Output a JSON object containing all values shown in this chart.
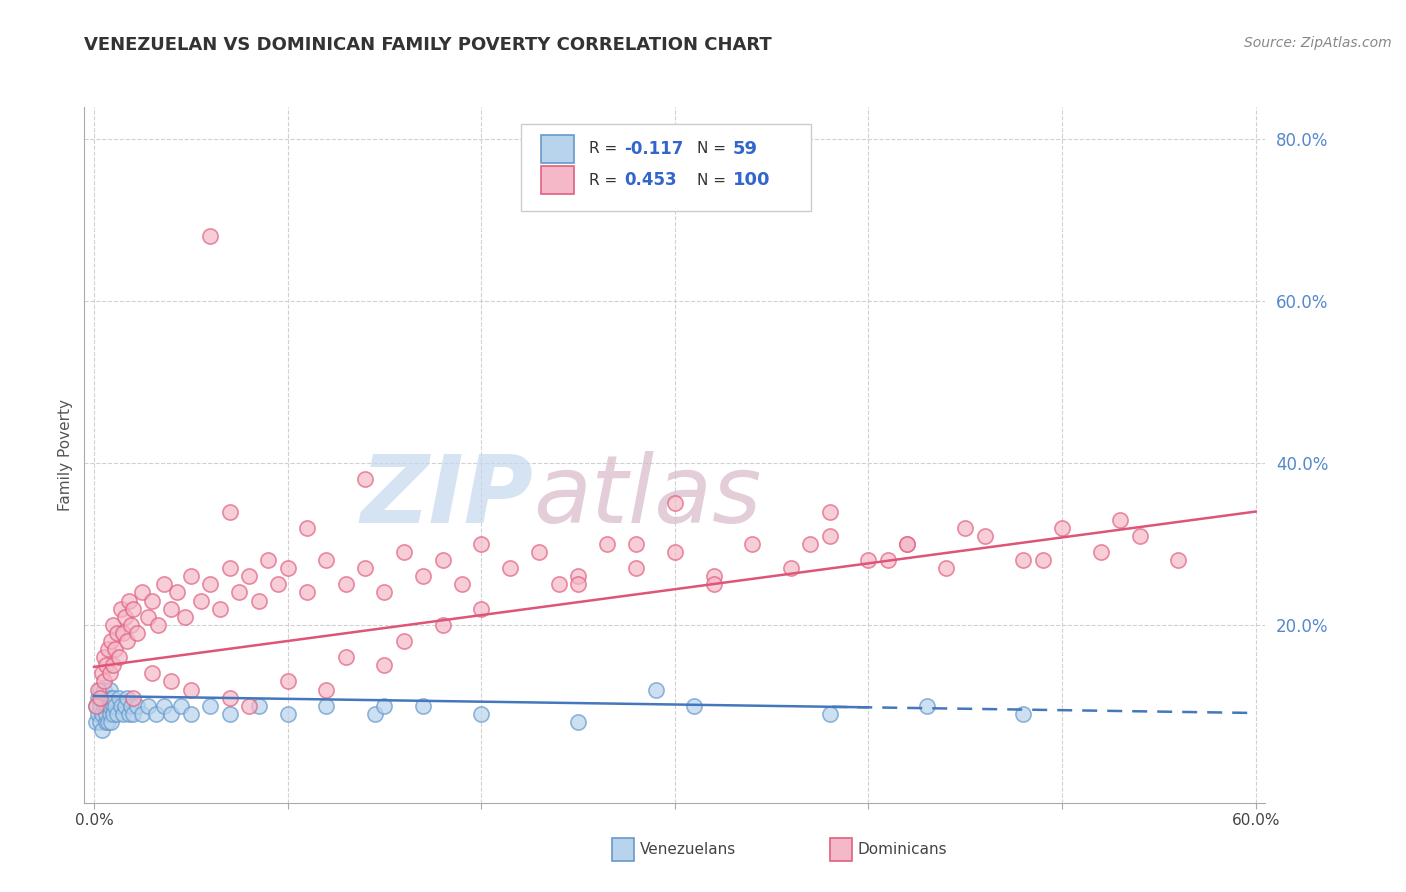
{
  "title": "VENEZUELAN VS DOMINICAN FAMILY POVERTY CORRELATION CHART",
  "source_text": "Source: ZipAtlas.com",
  "ylabel": "Family Poverty",
  "xlim": [
    -0.005,
    0.605
  ],
  "ylim": [
    -0.02,
    0.84
  ],
  "xticks": [
    0.0,
    0.1,
    0.2,
    0.3,
    0.4,
    0.5,
    0.6
  ],
  "xticklabels": [
    "0.0%",
    "",
    "",
    "",
    "",
    "",
    "60.0%"
  ],
  "yticks": [
    0.2,
    0.4,
    0.6,
    0.8
  ],
  "yticklabels": [
    "20.0%",
    "40.0%",
    "60.0%",
    "80.0%"
  ],
  "venezuelan_fill": "#b8d4ed",
  "venezuelan_edge": "#6699cc",
  "dominican_fill": "#f5b8c8",
  "dominican_edge": "#e06080",
  "ven_trend_color": "#4477bb",
  "dom_trend_color": "#dd5577",
  "watermark_zip_color": "#c5d8ee",
  "watermark_atlas_color": "#d8b8c8",
  "background_color": "#ffffff",
  "grid_color": "#cccccc",
  "tick_color": "#5588cc",
  "venezuelan_x": [
    0.001,
    0.001,
    0.002,
    0.002,
    0.003,
    0.003,
    0.003,
    0.004,
    0.004,
    0.004,
    0.005,
    0.005,
    0.006,
    0.006,
    0.006,
    0.007,
    0.007,
    0.007,
    0.008,
    0.008,
    0.008,
    0.009,
    0.009,
    0.01,
    0.01,
    0.01,
    0.011,
    0.012,
    0.013,
    0.014,
    0.015,
    0.016,
    0.017,
    0.018,
    0.019,
    0.02,
    0.022,
    0.025,
    0.028,
    0.032,
    0.036,
    0.04,
    0.045,
    0.05,
    0.06,
    0.07,
    0.085,
    0.1,
    0.12,
    0.145,
    0.17,
    0.2,
    0.25,
    0.31,
    0.38,
    0.43,
    0.48,
    0.29,
    0.15
  ],
  "venezuelan_y": [
    0.1,
    0.08,
    0.09,
    0.11,
    0.1,
    0.08,
    0.12,
    0.09,
    0.11,
    0.07,
    0.1,
    0.12,
    0.08,
    0.1,
    0.09,
    0.11,
    0.08,
    0.1,
    0.09,
    0.12,
    0.1,
    0.11,
    0.08,
    0.1,
    0.09,
    0.11,
    0.1,
    0.09,
    0.11,
    0.1,
    0.09,
    0.1,
    0.11,
    0.09,
    0.1,
    0.09,
    0.1,
    0.09,
    0.1,
    0.09,
    0.1,
    0.09,
    0.1,
    0.09,
    0.1,
    0.09,
    0.1,
    0.09,
    0.1,
    0.09,
    0.1,
    0.09,
    0.08,
    0.1,
    0.09,
    0.1,
    0.09,
    0.12,
    0.1
  ],
  "dominican_x": [
    0.001,
    0.002,
    0.003,
    0.004,
    0.005,
    0.005,
    0.006,
    0.007,
    0.008,
    0.009,
    0.01,
    0.01,
    0.011,
    0.012,
    0.013,
    0.014,
    0.015,
    0.016,
    0.017,
    0.018,
    0.019,
    0.02,
    0.022,
    0.025,
    0.028,
    0.03,
    0.033,
    0.036,
    0.04,
    0.043,
    0.047,
    0.05,
    0.055,
    0.06,
    0.065,
    0.07,
    0.075,
    0.08,
    0.085,
    0.09,
    0.095,
    0.1,
    0.11,
    0.12,
    0.13,
    0.14,
    0.15,
    0.16,
    0.17,
    0.18,
    0.19,
    0.2,
    0.215,
    0.23,
    0.25,
    0.265,
    0.28,
    0.3,
    0.32,
    0.34,
    0.36,
    0.38,
    0.4,
    0.42,
    0.44,
    0.46,
    0.48,
    0.5,
    0.52,
    0.54,
    0.56,
    0.03,
    0.05,
    0.08,
    0.12,
    0.15,
    0.02,
    0.04,
    0.07,
    0.1,
    0.13,
    0.16,
    0.2,
    0.24,
    0.28,
    0.32,
    0.37,
    0.41,
    0.45,
    0.49,
    0.53,
    0.07,
    0.11,
    0.3,
    0.38,
    0.18,
    0.25,
    0.42,
    0.14,
    0.06
  ],
  "dominican_y": [
    0.1,
    0.12,
    0.11,
    0.14,
    0.13,
    0.16,
    0.15,
    0.17,
    0.14,
    0.18,
    0.15,
    0.2,
    0.17,
    0.19,
    0.16,
    0.22,
    0.19,
    0.21,
    0.18,
    0.23,
    0.2,
    0.22,
    0.19,
    0.24,
    0.21,
    0.23,
    0.2,
    0.25,
    0.22,
    0.24,
    0.21,
    0.26,
    0.23,
    0.25,
    0.22,
    0.27,
    0.24,
    0.26,
    0.23,
    0.28,
    0.25,
    0.27,
    0.24,
    0.28,
    0.25,
    0.27,
    0.24,
    0.29,
    0.26,
    0.28,
    0.25,
    0.3,
    0.27,
    0.29,
    0.26,
    0.3,
    0.27,
    0.29,
    0.26,
    0.3,
    0.27,
    0.31,
    0.28,
    0.3,
    0.27,
    0.31,
    0.28,
    0.32,
    0.29,
    0.31,
    0.28,
    0.14,
    0.12,
    0.1,
    0.12,
    0.15,
    0.11,
    0.13,
    0.11,
    0.13,
    0.16,
    0.18,
    0.22,
    0.25,
    0.3,
    0.25,
    0.3,
    0.28,
    0.32,
    0.28,
    0.33,
    0.34,
    0.32,
    0.35,
    0.34,
    0.2,
    0.25,
    0.3,
    0.38,
    0.68
  ]
}
